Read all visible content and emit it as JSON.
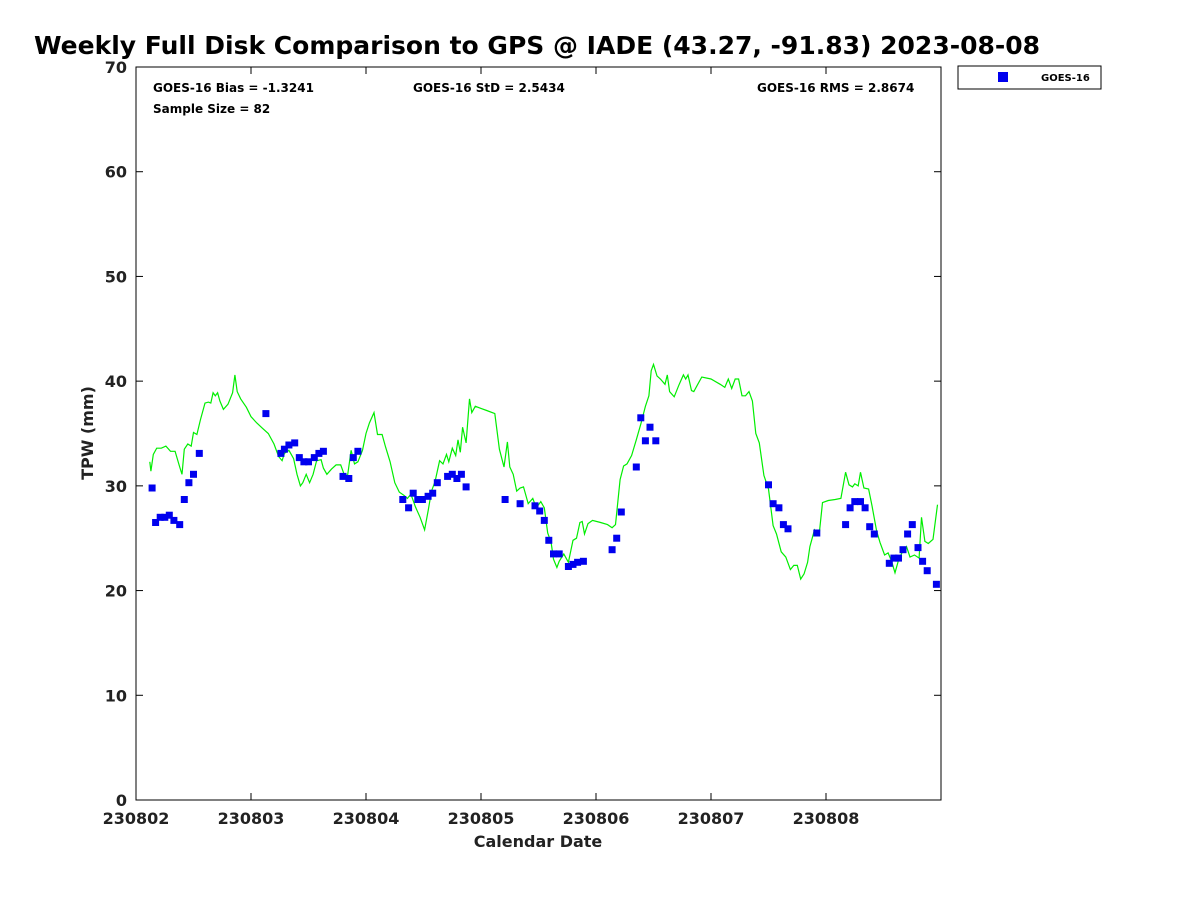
{
  "chart_data": {
    "type": "scatter",
    "title": "Weekly Full Disk Comparison to GPS @ IADE (43.27, -91.83) 2023-08-08",
    "xlabel": "Calendar Date",
    "ylabel": "TPW (mm)",
    "xlim": [
      0,
      7
    ],
    "ylim": [
      0,
      70
    ],
    "x_ticks": [
      0,
      1,
      2,
      3,
      4,
      5,
      6
    ],
    "x_tick_labels": [
      "230802",
      "230803",
      "230804",
      "230805",
      "230806",
      "230807",
      "230808"
    ],
    "y_ticks": [
      0,
      10,
      20,
      30,
      40,
      50,
      60,
      70
    ],
    "y_tick_labels": [
      "0",
      "10",
      "20",
      "30",
      "40",
      "50",
      "60",
      "70"
    ],
    "stats": {
      "bias": "GOES-16 Bias = -1.3241",
      "std": "GOES-16 StD = 2.5434",
      "rms": "GOES-16 RMS = 2.8674",
      "sample": "Sample Size = 82"
    },
    "legend": [
      {
        "label": "GOES-16",
        "color": "#0000ee",
        "marker": "square"
      }
    ],
    "series": [
      {
        "name": "GOES-16",
        "kind": "scatter",
        "color": "#0000ee",
        "points": [
          [
            0.14,
            29.8
          ],
          [
            0.17,
            26.5
          ],
          [
            0.21,
            27.0
          ],
          [
            0.25,
            27.0
          ],
          [
            0.29,
            27.2
          ],
          [
            0.33,
            26.7
          ],
          [
            0.38,
            26.3
          ],
          [
            0.42,
            28.7
          ],
          [
            0.46,
            30.3
          ],
          [
            0.5,
            31.1
          ],
          [
            0.55,
            33.1
          ],
          [
            1.13,
            36.9
          ],
          [
            1.26,
            33.1
          ],
          [
            1.29,
            33.5
          ],
          [
            1.33,
            33.9
          ],
          [
            1.38,
            34.1
          ],
          [
            1.42,
            32.7
          ],
          [
            1.46,
            32.3
          ],
          [
            1.5,
            32.3
          ],
          [
            1.55,
            32.7
          ],
          [
            1.59,
            33.1
          ],
          [
            1.63,
            33.3
          ],
          [
            1.8,
            30.9
          ],
          [
            1.85,
            30.7
          ],
          [
            1.89,
            32.7
          ],
          [
            1.93,
            33.3
          ],
          [
            2.32,
            28.7
          ],
          [
            2.37,
            27.9
          ],
          [
            2.41,
            29.3
          ],
          [
            2.45,
            28.7
          ],
          [
            2.49,
            28.7
          ],
          [
            2.54,
            29.0
          ],
          [
            2.58,
            29.3
          ],
          [
            2.62,
            30.3
          ],
          [
            2.71,
            30.9
          ],
          [
            2.75,
            31.1
          ],
          [
            2.79,
            30.7
          ],
          [
            2.83,
            31.1
          ],
          [
            2.87,
            29.9
          ],
          [
            3.21,
            28.7
          ],
          [
            3.34,
            28.3
          ],
          [
            3.47,
            28.1
          ],
          [
            3.51,
            27.6
          ],
          [
            3.55,
            26.7
          ],
          [
            3.59,
            24.8
          ],
          [
            3.63,
            23.5
          ],
          [
            3.68,
            23.5
          ],
          [
            3.76,
            22.3
          ],
          [
            3.8,
            22.5
          ],
          [
            3.84,
            22.7
          ],
          [
            3.89,
            22.8
          ],
          [
            4.14,
            23.9
          ],
          [
            4.18,
            25.0
          ],
          [
            4.22,
            27.5
          ],
          [
            4.35,
            31.8
          ],
          [
            4.39,
            36.5
          ],
          [
            4.43,
            34.3
          ],
          [
            4.47,
            35.6
          ],
          [
            4.52,
            34.3
          ],
          [
            5.5,
            30.1
          ],
          [
            5.54,
            28.3
          ],
          [
            5.59,
            27.9
          ],
          [
            5.63,
            26.3
          ],
          [
            5.67,
            25.9
          ],
          [
            5.92,
            25.5
          ],
          [
            6.17,
            26.3
          ],
          [
            6.21,
            27.9
          ],
          [
            6.25,
            28.5
          ],
          [
            6.3,
            28.5
          ],
          [
            6.34,
            27.9
          ],
          [
            6.38,
            26.1
          ],
          [
            6.42,
            25.4
          ],
          [
            6.55,
            22.6
          ],
          [
            6.59,
            23.1
          ],
          [
            6.63,
            23.1
          ],
          [
            6.67,
            23.9
          ],
          [
            6.71,
            25.4
          ],
          [
            6.75,
            26.3
          ],
          [
            6.8,
            24.1
          ],
          [
            6.84,
            22.8
          ],
          [
            6.88,
            21.9
          ],
          [
            6.96,
            20.6
          ]
        ]
      },
      {
        "name": "GPS",
        "kind": "line",
        "color": "#00ee00",
        "points": [
          [
            0.12,
            32.3
          ],
          [
            0.13,
            31.4
          ],
          [
            0.15,
            33.0
          ],
          [
            0.18,
            33.6
          ],
          [
            0.22,
            33.6
          ],
          [
            0.26,
            33.8
          ],
          [
            0.3,
            33.3
          ],
          [
            0.34,
            33.3
          ],
          [
            0.38,
            31.8
          ],
          [
            0.4,
            31.1
          ],
          [
            0.42,
            33.5
          ],
          [
            0.45,
            34.0
          ],
          [
            0.48,
            33.8
          ],
          [
            0.5,
            35.1
          ],
          [
            0.53,
            34.9
          ],
          [
            0.56,
            36.3
          ],
          [
            0.6,
            37.9
          ],
          [
            0.63,
            38.0
          ],
          [
            0.65,
            37.9
          ],
          [
            0.67,
            38.9
          ],
          [
            0.69,
            38.6
          ],
          [
            0.71,
            38.9
          ],
          [
            0.73,
            38.1
          ],
          [
            0.76,
            37.3
          ],
          [
            0.8,
            37.8
          ],
          [
            0.84,
            38.9
          ],
          [
            0.86,
            40.6
          ],
          [
            0.88,
            39.0
          ],
          [
            0.91,
            38.3
          ],
          [
            0.96,
            37.5
          ],
          [
            1.0,
            36.6
          ],
          [
            1.05,
            36.0
          ],
          [
            1.1,
            35.5
          ],
          [
            1.15,
            35.0
          ],
          [
            1.2,
            34.0
          ],
          [
            1.24,
            32.8
          ],
          [
            1.27,
            32.4
          ],
          [
            1.29,
            33.1
          ],
          [
            1.33,
            33.4
          ],
          [
            1.37,
            32.6
          ],
          [
            1.4,
            31.1
          ],
          [
            1.43,
            30.0
          ],
          [
            1.45,
            30.3
          ],
          [
            1.48,
            31.1
          ],
          [
            1.51,
            30.3
          ],
          [
            1.54,
            31.1
          ],
          [
            1.57,
            32.4
          ],
          [
            1.61,
            32.5
          ],
          [
            1.63,
            31.7
          ],
          [
            1.66,
            31.1
          ],
          [
            1.7,
            31.6
          ],
          [
            1.74,
            32.0
          ],
          [
            1.78,
            32.0
          ],
          [
            1.81,
            31.1
          ],
          [
            1.84,
            31.0
          ],
          [
            1.87,
            33.4
          ],
          [
            1.9,
            32.1
          ],
          [
            1.93,
            32.3
          ],
          [
            1.97,
            33.4
          ],
          [
            2.0,
            35.0
          ],
          [
            2.03,
            36.0
          ],
          [
            2.07,
            37.0
          ],
          [
            2.1,
            34.9
          ],
          [
            2.14,
            34.9
          ],
          [
            2.17,
            33.7
          ],
          [
            2.21,
            32.3
          ],
          [
            2.25,
            30.3
          ],
          [
            2.29,
            29.4
          ],
          [
            2.33,
            29.1
          ],
          [
            2.36,
            28.8
          ],
          [
            2.39,
            29.2
          ],
          [
            2.43,
            28.0
          ],
          [
            2.47,
            27.0
          ],
          [
            2.51,
            25.8
          ],
          [
            2.54,
            27.6
          ],
          [
            2.57,
            29.5
          ],
          [
            2.6,
            30.4
          ],
          [
            2.64,
            32.4
          ],
          [
            2.67,
            32.1
          ],
          [
            2.7,
            33.0
          ],
          [
            2.72,
            32.3
          ],
          [
            2.75,
            33.6
          ],
          [
            2.78,
            32.9
          ],
          [
            2.8,
            34.4
          ],
          [
            2.82,
            33.2
          ],
          [
            2.84,
            35.6
          ],
          [
            2.87,
            34.1
          ],
          [
            2.9,
            38.3
          ],
          [
            2.92,
            37.0
          ],
          [
            2.95,
            37.6
          ],
          [
            3.0,
            37.4
          ],
          [
            3.05,
            37.2
          ],
          [
            3.12,
            36.9
          ],
          [
            3.16,
            33.5
          ],
          [
            3.2,
            31.8
          ],
          [
            3.23,
            34.2
          ],
          [
            3.25,
            31.8
          ],
          [
            3.28,
            31.1
          ],
          [
            3.31,
            29.5
          ],
          [
            3.34,
            29.8
          ],
          [
            3.37,
            29.9
          ],
          [
            3.41,
            28.3
          ],
          [
            3.45,
            28.8
          ],
          [
            3.48,
            27.9
          ],
          [
            3.52,
            28.5
          ],
          [
            3.55,
            27.9
          ],
          [
            3.58,
            25.5
          ],
          [
            3.61,
            24.6
          ],
          [
            3.63,
            23.0
          ],
          [
            3.66,
            22.2
          ],
          [
            3.68,
            22.8
          ],
          [
            3.72,
            23.5
          ],
          [
            3.76,
            22.7
          ],
          [
            3.8,
            24.8
          ],
          [
            3.83,
            25.0
          ],
          [
            3.86,
            26.5
          ],
          [
            3.88,
            26.6
          ],
          [
            3.9,
            25.4
          ],
          [
            3.93,
            26.4
          ],
          [
            3.97,
            26.7
          ],
          [
            4.04,
            26.5
          ],
          [
            4.1,
            26.3
          ],
          [
            4.14,
            26.0
          ],
          [
            4.17,
            26.3
          ],
          [
            4.21,
            30.6
          ],
          [
            4.24,
            31.9
          ],
          [
            4.27,
            32.1
          ],
          [
            4.31,
            32.9
          ],
          [
            4.35,
            34.4
          ],
          [
            4.39,
            35.9
          ],
          [
            4.43,
            37.6
          ],
          [
            4.46,
            38.6
          ],
          [
            4.48,
            41.0
          ],
          [
            4.5,
            41.6
          ],
          [
            4.53,
            40.5
          ],
          [
            4.56,
            40.2
          ],
          [
            4.6,
            39.7
          ],
          [
            4.62,
            40.6
          ],
          [
            4.64,
            39.0
          ],
          [
            4.68,
            38.5
          ],
          [
            4.72,
            39.6
          ],
          [
            4.76,
            40.6
          ],
          [
            4.78,
            40.2
          ],
          [
            4.8,
            40.6
          ],
          [
            4.83,
            39.1
          ],
          [
            4.85,
            39.0
          ],
          [
            4.88,
            39.6
          ],
          [
            4.92,
            40.4
          ],
          [
            5.0,
            40.2
          ],
          [
            5.08,
            39.7
          ],
          [
            5.12,
            39.4
          ],
          [
            5.15,
            40.2
          ],
          [
            5.18,
            39.3
          ],
          [
            5.21,
            40.2
          ],
          [
            5.24,
            40.2
          ],
          [
            5.27,
            38.6
          ],
          [
            5.3,
            38.6
          ],
          [
            5.33,
            39.0
          ],
          [
            5.36,
            38.1
          ],
          [
            5.39,
            35.0
          ],
          [
            5.42,
            34.1
          ],
          [
            5.46,
            31.0
          ],
          [
            5.5,
            29.7
          ],
          [
            5.54,
            26.2
          ],
          [
            5.57,
            25.4
          ],
          [
            5.61,
            23.7
          ],
          [
            5.65,
            23.2
          ],
          [
            5.69,
            22.0
          ],
          [
            5.72,
            22.4
          ],
          [
            5.75,
            22.4
          ],
          [
            5.78,
            21.1
          ],
          [
            5.81,
            21.6
          ],
          [
            5.84,
            22.7
          ],
          [
            5.86,
            24.2
          ],
          [
            5.9,
            25.8
          ],
          [
            5.94,
            25.3
          ],
          [
            5.97,
            28.4
          ],
          [
            6.02,
            28.6
          ],
          [
            6.08,
            28.7
          ],
          [
            6.13,
            28.8
          ],
          [
            6.17,
            31.3
          ],
          [
            6.2,
            30.1
          ],
          [
            6.23,
            29.9
          ],
          [
            6.25,
            30.2
          ],
          [
            6.28,
            30.0
          ],
          [
            6.3,
            31.3
          ],
          [
            6.33,
            29.8
          ],
          [
            6.37,
            29.7
          ],
          [
            6.4,
            28.1
          ],
          [
            6.44,
            25.7
          ],
          [
            6.47,
            24.6
          ],
          [
            6.51,
            23.4
          ],
          [
            6.54,
            23.6
          ],
          [
            6.57,
            22.8
          ],
          [
            6.6,
            21.7
          ],
          [
            6.63,
            22.9
          ],
          [
            6.66,
            23.6
          ],
          [
            6.7,
            24.2
          ],
          [
            6.73,
            23.2
          ],
          [
            6.77,
            23.4
          ],
          [
            6.81,
            23.1
          ],
          [
            6.83,
            27.0
          ],
          [
            6.86,
            24.7
          ],
          [
            6.89,
            24.5
          ],
          [
            6.93,
            24.9
          ],
          [
            6.97,
            28.2
          ]
        ]
      }
    ]
  }
}
